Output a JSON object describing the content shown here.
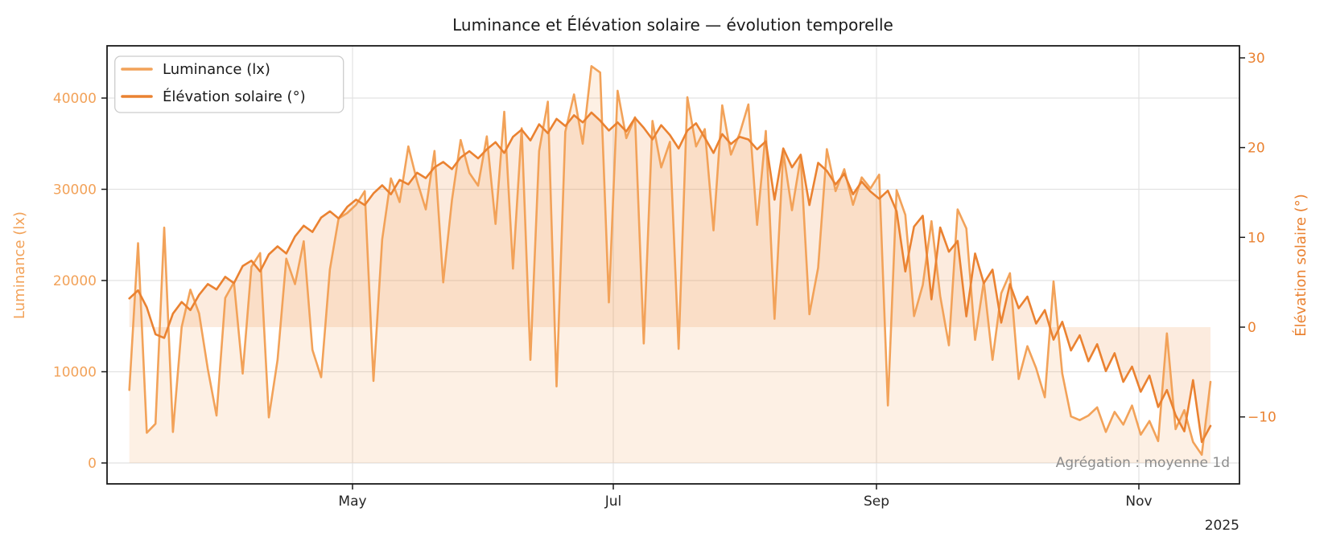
{
  "title": "Luminance et Élévation solaire — évolution temporelle",
  "legend": {
    "items": [
      {
        "label": "Luminance (lx)"
      },
      {
        "label": "Élévation solaire (°)"
      }
    ]
  },
  "annotation": "Agrégation : moyenne 1d",
  "axes": {
    "left": {
      "label": "Luminance (lx)",
      "ticks": [
        "0",
        "10000",
        "20000",
        "30000",
        "40000"
      ]
    },
    "right": {
      "label": "Élévation solaire (°)",
      "ticks": [
        "30",
        "20",
        "10",
        "0",
        "−10"
      ]
    },
    "x": {
      "ticks": [
        "May",
        "Jul",
        "Sep",
        "Nov"
      ],
      "offset_text": "2025"
    }
  },
  "colors": {
    "luminance": "#F2A259",
    "elevation": "#EA8231",
    "fill_opacity": 0.16,
    "grid": "#e2e2e2",
    "spine": "#1a1a1a",
    "annotation": "#8c8c8c"
  },
  "chart_data": {
    "type": "line",
    "title": "Luminance et Élévation solaire — évolution temporelle",
    "aggregation": "moyenne 1d",
    "x_start_date": "2025-03-10",
    "x_step_days": 2,
    "x_tick_labels": [
      "May",
      "Jul",
      "Sep",
      "Nov"
    ],
    "x_year": "2025",
    "grid": true,
    "legend_position": "upper left",
    "ylim_left": [
      -2300,
      45700
    ],
    "ylim_right": [
      -17.5,
      31.3
    ],
    "series": [
      {
        "name": "Luminance (lx)",
        "axis": "left",
        "values": [
          8000,
          24100,
          3300,
          4300,
          25800,
          3400,
          14900,
          19000,
          16400,
          10300,
          5200,
          18100,
          19800,
          9800,
          21500,
          23000,
          5000,
          11300,
          22400,
          19600,
          24300,
          12400,
          9400,
          21200,
          26800,
          27400,
          28300,
          29800,
          9000,
          24500,
          31200,
          28600,
          34700,
          30900,
          27800,
          34200,
          19800,
          28800,
          35400,
          31800,
          30400,
          35800,
          26200,
          38500,
          21300,
          36700,
          11300,
          34200,
          39600,
          8400,
          36300,
          40400,
          35000,
          43500,
          42800,
          17600,
          40800,
          35600,
          37900,
          13100,
          37500,
          32400,
          35200,
          12500,
          40100,
          34700,
          36600,
          25500,
          39200,
          33800,
          36100,
          39300,
          26100,
          36400,
          15800,
          34100,
          27700,
          33500,
          16300,
          21400,
          34400,
          29800,
          32200,
          28300,
          31300,
          30100,
          31600,
          6300,
          29900,
          27200,
          16100,
          19500,
          26500,
          18300,
          12900,
          27800,
          25700,
          13500,
          19900,
          11300,
          18600,
          20800,
          9200,
          12800,
          10400,
          7200,
          19900,
          9800,
          5100,
          4700,
          5200,
          6100,
          3400,
          5600,
          4200,
          6300,
          3100,
          4600,
          2400,
          14200,
          3700,
          5800,
          2300,
          900,
          8900
        ]
      },
      {
        "name": "Élévation solaire (°)",
        "axis": "right",
        "values": [
          3.2,
          4.1,
          2.2,
          -0.8,
          -1.2,
          1.5,
          2.8,
          1.9,
          3.6,
          4.8,
          4.2,
          5.6,
          4.9,
          6.8,
          7.4,
          6.2,
          8.1,
          9.0,
          8.2,
          10.1,
          11.3,
          10.6,
          12.2,
          12.9,
          12.1,
          13.4,
          14.2,
          13.6,
          14.9,
          15.8,
          14.8,
          16.4,
          15.9,
          17.2,
          16.6,
          17.8,
          18.4,
          17.6,
          18.9,
          19.6,
          18.8,
          19.8,
          20.6,
          19.4,
          21.2,
          22.0,
          20.8,
          22.6,
          21.6,
          23.2,
          22.4,
          23.6,
          22.8,
          23.9,
          23.0,
          21.9,
          22.8,
          21.8,
          23.3,
          22.2,
          20.9,
          22.5,
          21.4,
          19.9,
          21.9,
          22.7,
          21.1,
          19.4,
          21.5,
          20.4,
          21.2,
          20.9,
          19.8,
          20.7,
          14.2,
          19.9,
          17.8,
          19.2,
          13.6,
          18.3,
          17.4,
          15.9,
          17.1,
          14.8,
          16.2,
          15.1,
          14.3,
          15.2,
          12.9,
          6.2,
          11.2,
          12.4,
          3.1,
          11.1,
          8.4,
          9.6,
          1.2,
          8.2,
          4.9,
          6.4,
          0.5,
          4.8,
          2.1,
          3.4,
          0.4,
          1.9,
          -1.4,
          0.6,
          -2.6,
          -0.9,
          -3.8,
          -1.9,
          -4.9,
          -2.9,
          -6.1,
          -4.4,
          -7.2,
          -5.4,
          -8.9,
          -7.0,
          -9.8,
          -11.6,
          -5.9,
          -12.8,
          -11.0
        ]
      }
    ]
  }
}
